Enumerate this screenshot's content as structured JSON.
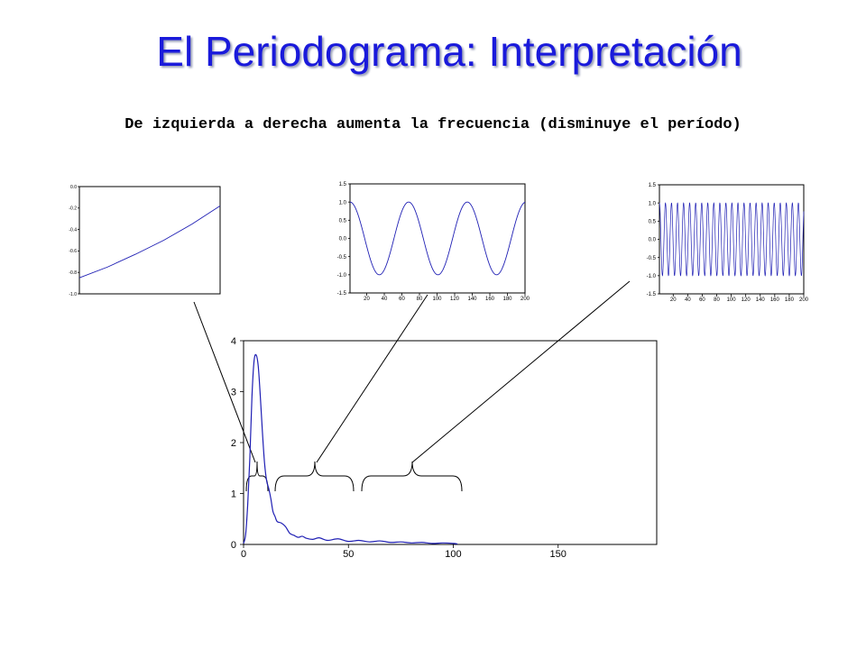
{
  "title": "El Periodograma: Interpretación",
  "subtitle": "De izquierda a derecha aumenta la frecuencia (disminuye el período)",
  "colors": {
    "title": "#1a1adb",
    "series": "#1f1fb4"
  },
  "chart_data": [
    {
      "id": "periodogram",
      "type": "line",
      "xlim": [
        0,
        197
      ],
      "ylim": [
        0,
        4
      ],
      "xticks": [
        "0",
        "50",
        "100",
        "150"
      ],
      "xtick_values": [
        0,
        50,
        100,
        150
      ],
      "yticks": [
        "0",
        "1",
        "2",
        "3",
        "4"
      ],
      "ytick_values": [
        0,
        1,
        2,
        3,
        4
      ],
      "series": [
        {
          "x": [
            0,
            1,
            2,
            3,
            4,
            5,
            6,
            7,
            8,
            9,
            10,
            11,
            12,
            13,
            14,
            15,
            16,
            18,
            20,
            22,
            24,
            26,
            28,
            30,
            33,
            36,
            40,
            45,
            50,
            55,
            60,
            65,
            70,
            75,
            80,
            85,
            90,
            95,
            100,
            102
          ],
          "y": [
            0.02,
            0.2,
            0.8,
            1.7,
            2.9,
            3.6,
            3.72,
            3.5,
            2.9,
            2.2,
            1.6,
            1.25,
            1.1,
            0.9,
            0.65,
            0.55,
            0.45,
            0.42,
            0.35,
            0.22,
            0.18,
            0.14,
            0.16,
            0.12,
            0.1,
            0.13,
            0.08,
            0.11,
            0.06,
            0.08,
            0.05,
            0.07,
            0.04,
            0.05,
            0.03,
            0.04,
            0.02,
            0.03,
            0.02,
            0.01
          ]
        }
      ],
      "grid": false
    },
    {
      "id": "low-frequency-inset",
      "type": "line",
      "xlim": [
        0,
        100
      ],
      "ylim": [
        -1.0,
        0.0
      ],
      "yticks": [
        "0.0",
        "-0.2",
        "-0.4",
        "-0.6",
        "-0.8",
        "-1.0"
      ],
      "ytick_values": [
        0.0,
        -0.2,
        -0.4,
        -0.6,
        -0.8,
        -1.0
      ],
      "series": [
        {
          "x": [
            0,
            20,
            40,
            60,
            80,
            100
          ],
          "y": [
            -0.85,
            -0.75,
            -0.63,
            -0.5,
            -0.35,
            -0.18
          ]
        }
      ],
      "grid": false
    },
    {
      "id": "mid-frequency-inset",
      "type": "line",
      "xlim": [
        1,
        200
      ],
      "ylim": [
        -1.5,
        1.5
      ],
      "xticks": [
        "20",
        "40",
        "60",
        "80",
        "100",
        "120",
        "140",
        "160",
        "180",
        "200"
      ],
      "xtick_values": [
        20,
        40,
        60,
        80,
        100,
        120,
        140,
        160,
        180,
        200
      ],
      "yticks": [
        "1.5",
        "1.0",
        "0.5",
        "0.0",
        "-0.5",
        "-1.0",
        "-1.5"
      ],
      "ytick_values": [
        1.5,
        1.0,
        0.5,
        0.0,
        -0.5,
        -1.0,
        -1.5
      ],
      "signal": {
        "kind": "cosine",
        "amplitude": 1.0,
        "period": 66.67
      },
      "grid": false
    },
    {
      "id": "high-frequency-inset",
      "type": "line",
      "xlim": [
        1,
        200
      ],
      "ylim": [
        -1.5,
        1.5
      ],
      "xticks": [
        "20",
        "40",
        "60",
        "80",
        "100",
        "120",
        "140",
        "160",
        "180",
        "200"
      ],
      "xtick_values": [
        20,
        40,
        60,
        80,
        100,
        120,
        140,
        160,
        180,
        200
      ],
      "yticks": [
        "1.5",
        "1.0",
        "0.5",
        "0.0",
        "-0.5",
        "-1.0",
        "-1.5"
      ],
      "ytick_values": [
        1.5,
        1.0,
        0.5,
        0.0,
        -0.5,
        -1.0,
        -1.5
      ],
      "signal": {
        "kind": "cosine",
        "amplitude": 1.0,
        "period": 8.33
      },
      "grid": false
    }
  ]
}
